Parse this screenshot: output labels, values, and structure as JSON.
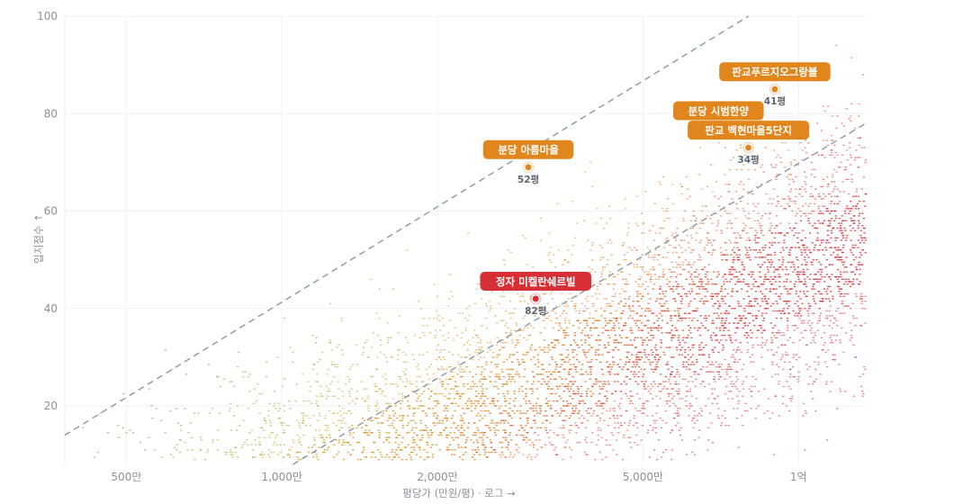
{
  "chart_data": {
    "type": "scatter",
    "title": "",
    "xlabel": "평당가 (만원/평) · 로그 →",
    "ylabel": "입지점수 ↑",
    "x_scale": "log",
    "xlim": [
      380,
      13500
    ],
    "ylim": [
      8,
      100
    ],
    "x_ticks": [
      {
        "value": 500,
        "label": "500만"
      },
      {
        "value": 1000,
        "label": "1,000만"
      },
      {
        "value": 2000,
        "label": "2,000만"
      },
      {
        "value": 5000,
        "label": "5,000만"
      },
      {
        "value": 10000,
        "label": "1억"
      }
    ],
    "y_ticks": [
      {
        "value": 20,
        "label": "20"
      },
      {
        "value": 40,
        "label": "40"
      },
      {
        "value": 60,
        "label": "60"
      },
      {
        "value": 80,
        "label": "80"
      },
      {
        "value": 100,
        "label": "100"
      }
    ],
    "grid": true,
    "reference_lines": [
      {
        "from": [
          380,
          14
        ],
        "to": [
          8000,
          100
        ]
      },
      {
        "from": [
          1050,
          8
        ],
        "to": [
          13500,
          78
        ]
      }
    ],
    "background_points": {
      "count": 5000,
      "color_scale": [
        "#2e9e6e",
        "#7a9a3a",
        "#c9a227",
        "#e0861c",
        "#d62f36"
      ]
    },
    "highlights": [
      {
        "name": "판교푸르지오그랑블",
        "x": 9000,
        "y": 85,
        "size_label": "41평",
        "color": "#e0861c"
      },
      {
        "name": "분당 시범한양",
        "x": 7000,
        "y": 77,
        "size_label": "",
        "color": "#e0861c"
      },
      {
        "name": "판교 백현마을5단지",
        "x": 8000,
        "y": 73,
        "size_label": "34평",
        "color": "#e0861c"
      },
      {
        "name": "분당 아름마을",
        "x": 3000,
        "y": 69,
        "size_label": "52평",
        "color": "#e0861c"
      },
      {
        "name": "정자 미켈란쉐르빌",
        "x": 3100,
        "y": 42,
        "size_label": "82평",
        "color": "#d62f36"
      }
    ]
  }
}
